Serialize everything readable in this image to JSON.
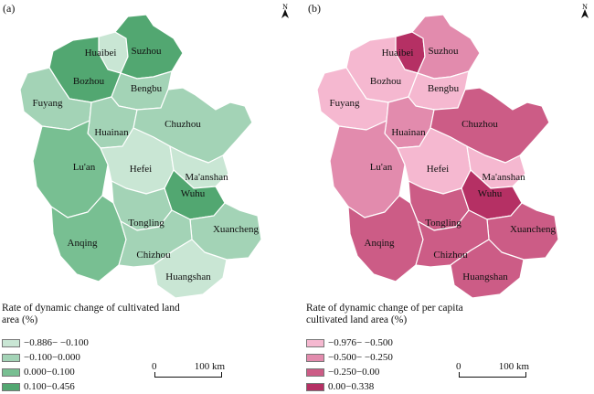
{
  "panels": [
    {
      "label": "(a)",
      "legend_title": "Rate of dynamic change of cultivated land area (%)",
      "legend": [
        {
          "label": "−0.886− −0.100",
          "color": "#c9e6d4"
        },
        {
          "label": "−0.100−0.000",
          "color": "#a3d3b6"
        },
        {
          "label": "0.000−0.100",
          "color": "#78bf92"
        },
        {
          "label": "0.100−0.456",
          "color": "#52a771"
        }
      ],
      "scale": {
        "start": "0",
        "end": "100 km"
      },
      "north": "N",
      "regions": [
        {
          "name": "Huaibei",
          "class": 0
        },
        {
          "name": "Suzhou",
          "class": 3
        },
        {
          "name": "Bozhou",
          "class": 3
        },
        {
          "name": "Bengbu",
          "class": 1
        },
        {
          "name": "Fuyang",
          "class": 1
        },
        {
          "name": "Huainan",
          "class": 1
        },
        {
          "name": "Chuzhou",
          "class": 1
        },
        {
          "name": "Lu'an",
          "class": 2
        },
        {
          "name": "Hefei",
          "class": 0
        },
        {
          "name": "Ma'anshan",
          "class": 0
        },
        {
          "name": "Wuhu",
          "class": 3
        },
        {
          "name": "Tongling",
          "class": 1
        },
        {
          "name": "Xuancheng",
          "class": 1
        },
        {
          "name": "Anqing",
          "class": 2
        },
        {
          "name": "Chizhou",
          "class": 1
        },
        {
          "name": "Huangshan",
          "class": 0
        }
      ]
    },
    {
      "label": "(b)",
      "legend_title": "Rate of dynamic change of per capita cultivated land area (%)",
      "legend": [
        {
          "label": "−0.976− −0.500",
          "color": "#f5b8d0"
        },
        {
          "label": "−0.500− −0.250",
          "color": "#e28bad"
        },
        {
          "label": "−0.250−0.00",
          "color": "#cc5c86"
        },
        {
          "label": "0.00−0.338",
          "color": "#b53064"
        }
      ],
      "scale": {
        "start": "0",
        "end": "100 km"
      },
      "north": "N",
      "regions": [
        {
          "name": "Huaibei",
          "class": 3
        },
        {
          "name": "Suzhou",
          "class": 1
        },
        {
          "name": "Bozhou",
          "class": 0
        },
        {
          "name": "Bengbu",
          "class": 0
        },
        {
          "name": "Fuyang",
          "class": 0
        },
        {
          "name": "Huainan",
          "class": 1
        },
        {
          "name": "Chuzhou",
          "class": 2
        },
        {
          "name": "Lu'an",
          "class": 1
        },
        {
          "name": "Hefei",
          "class": 0
        },
        {
          "name": "Ma'anshan",
          "class": 0
        },
        {
          "name": "Wuhu",
          "class": 3
        },
        {
          "name": "Tongling",
          "class": 2
        },
        {
          "name": "Xuancheng",
          "class": 2
        },
        {
          "name": "Anqing",
          "class": 2
        },
        {
          "name": "Chizhou",
          "class": 2
        },
        {
          "name": "Huangshan",
          "class": 2
        }
      ]
    }
  ]
}
